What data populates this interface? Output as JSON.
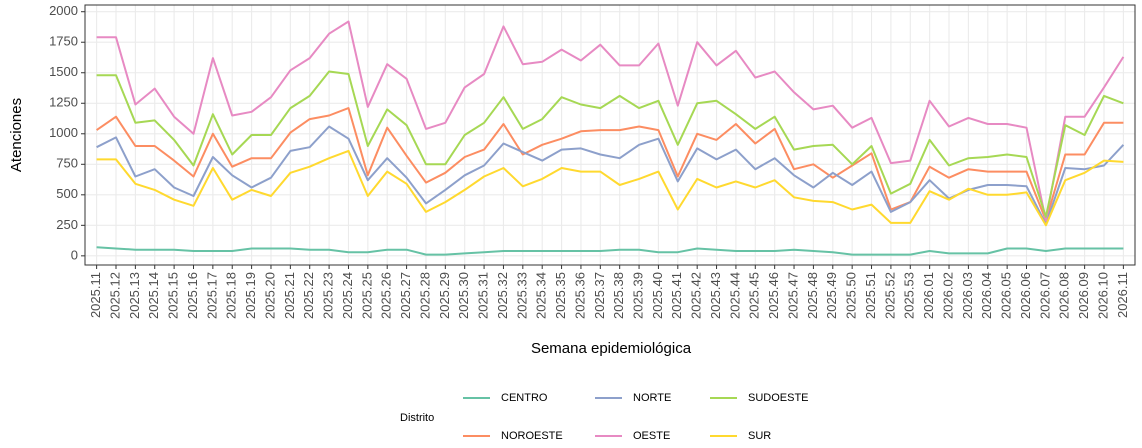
{
  "chart_data": {
    "type": "line",
    "x_label": "Semana epidemiológica",
    "y_label": "Atenciones",
    "legend_title": "Distrito",
    "categories": [
      "2025.11",
      "2025.12",
      "2025.13",
      "2025.14",
      "2025.15",
      "2025.16",
      "2025.17",
      "2025.18",
      "2025.19",
      "2025.20",
      "2025.21",
      "2025.22",
      "2025.23",
      "2025.24",
      "2025.25",
      "2025.26",
      "2025.27",
      "2025.28",
      "2025.29",
      "2025.30",
      "2025.31",
      "2025.32",
      "2025.33",
      "2025.34",
      "2025.35",
      "2025.36",
      "2025.37",
      "2025.38",
      "2025.39",
      "2025.40",
      "2025.41",
      "2025.42",
      "2025.43",
      "2025.44",
      "2025.45",
      "2025.46",
      "2025.47",
      "2025.48",
      "2025.49",
      "2025.50",
      "2025.51",
      "2025.52",
      "2025.53",
      "2026.01",
      "2026.02",
      "2026.03",
      "2026.04",
      "2026.05",
      "2026.06",
      "2026.07",
      "2026.08",
      "2026.09",
      "2026.10",
      "2026.11"
    ],
    "series": [
      {
        "name": "CENTRO",
        "color": "#66c2a5",
        "values": [
          70,
          60,
          50,
          50,
          50,
          40,
          40,
          40,
          60,
          60,
          60,
          50,
          50,
          30,
          30,
          50,
          50,
          10,
          10,
          20,
          30,
          40,
          40,
          40,
          40,
          40,
          40,
          50,
          50,
          30,
          30,
          60,
          50,
          40,
          40,
          40,
          50,
          40,
          30,
          10,
          10,
          10,
          10,
          40,
          20,
          20,
          20,
          60,
          60,
          40,
          60,
          60,
          60,
          60
        ]
      },
      {
        "name": "NOROESTE",
        "color": "#fc8d62",
        "values": [
          1030,
          1140,
          900,
          900,
          780,
          650,
          1000,
          730,
          800,
          800,
          1010,
          1120,
          1150,
          1210,
          660,
          1050,
          820,
          600,
          680,
          810,
          870,
          1080,
          830,
          910,
          960,
          1020,
          1030,
          1030,
          1060,
          1030,
          650,
          1000,
          950,
          1080,
          920,
          1040,
          710,
          750,
          640,
          740,
          840,
          380,
          440,
          730,
          640,
          710,
          690,
          690,
          690,
          290,
          830,
          830,
          1090,
          1090
        ]
      },
      {
        "name": "NORTE",
        "color": "#8da0cb",
        "values": [
          890,
          970,
          650,
          710,
          560,
          490,
          810,
          660,
          560,
          640,
          860,
          890,
          1060,
          960,
          620,
          800,
          640,
          430,
          540,
          660,
          740,
          920,
          850,
          780,
          870,
          880,
          830,
          800,
          910,
          960,
          610,
          880,
          790,
          870,
          710,
          800,
          660,
          560,
          680,
          580,
          690,
          360,
          440,
          620,
          470,
          540,
          580,
          580,
          570,
          260,
          720,
          710,
          740,
          910
        ]
      },
      {
        "name": "OESTE",
        "color": "#e78ac3",
        "values": [
          1790,
          1790,
          1240,
          1370,
          1140,
          1000,
          1620,
          1150,
          1180,
          1300,
          1520,
          1620,
          1820,
          1920,
          1220,
          1570,
          1450,
          1040,
          1090,
          1380,
          1490,
          1880,
          1570,
          1590,
          1690,
          1600,
          1730,
          1560,
          1560,
          1740,
          1230,
          1750,
          1560,
          1680,
          1460,
          1510,
          1340,
          1200,
          1230,
          1050,
          1130,
          760,
          780,
          1270,
          1060,
          1130,
          1080,
          1080,
          1050,
          290,
          1140,
          1140,
          1380,
          1630
        ]
      },
      {
        "name": "SUDOESTE",
        "color": "#a6d854",
        "values": [
          1480,
          1480,
          1090,
          1110,
          950,
          740,
          1160,
          830,
          990,
          990,
          1210,
          1310,
          1510,
          1490,
          900,
          1200,
          1070,
          750,
          750,
          990,
          1090,
          1300,
          1040,
          1120,
          1300,
          1240,
          1210,
          1310,
          1210,
          1270,
          910,
          1250,
          1270,
          1160,
          1040,
          1140,
          870,
          900,
          910,
          750,
          900,
          510,
          590,
          950,
          740,
          800,
          810,
          830,
          810,
          320,
          1070,
          990,
          1310,
          1250
        ]
      },
      {
        "name": "SUR",
        "color": "#ffd92f",
        "values": [
          790,
          790,
          590,
          540,
          460,
          410,
          720,
          460,
          540,
          490,
          680,
          730,
          800,
          860,
          490,
          690,
          590,
          360,
          440,
          540,
          650,
          720,
          570,
          630,
          720,
          690,
          690,
          580,
          630,
          690,
          380,
          630,
          560,
          610,
          560,
          620,
          480,
          450,
          440,
          380,
          420,
          270,
          270,
          530,
          460,
          550,
          500,
          500,
          520,
          250,
          620,
          680,
          780,
          770
        ]
      }
    ],
    "ylim": [
      -75,
      2055
    ],
    "yticks": [
      0,
      250,
      500,
      750,
      1000,
      1250,
      1500,
      1750,
      2000
    ],
    "grid": true
  }
}
